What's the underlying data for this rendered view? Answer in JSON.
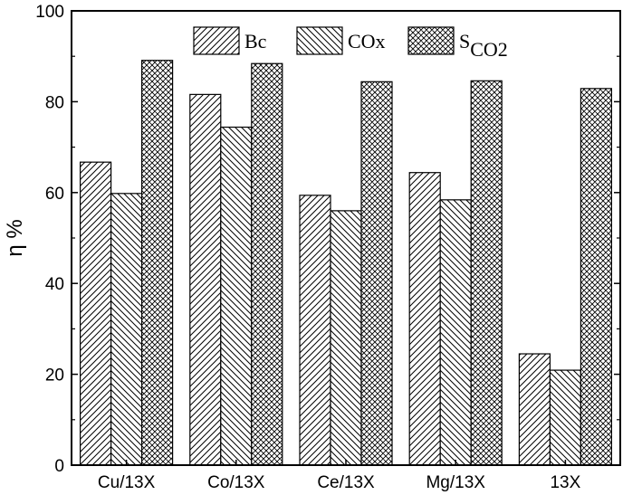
{
  "chart_data": {
    "type": "bar",
    "title": "",
    "xlabel": "",
    "ylabel": "η %",
    "ylim": [
      0,
      100
    ],
    "yticks": [
      0,
      20,
      40,
      60,
      80,
      100
    ],
    "grid": false,
    "legend_position": "top",
    "categories": [
      "Cu/13X",
      "Co/13X",
      "Ce/13X",
      "Mg/13X",
      "13X"
    ],
    "series": [
      {
        "name": "Bc",
        "pattern": "diagonal-right",
        "values": [
          66.7,
          81.6,
          59.4,
          64.4,
          24.5
        ]
      },
      {
        "name": "COx",
        "pattern": "diagonal-left",
        "values": [
          59.8,
          74.4,
          56.0,
          58.4,
          20.9
        ]
      },
      {
        "name": "SCO2",
        "legend_main": "S",
        "legend_sub": "CO2",
        "pattern": "crosshatch",
        "values": [
          89.1,
          88.4,
          84.4,
          84.6,
          82.9
        ]
      }
    ],
    "colors": {
      "stroke": "#000000",
      "background": "#ffffff"
    }
  }
}
